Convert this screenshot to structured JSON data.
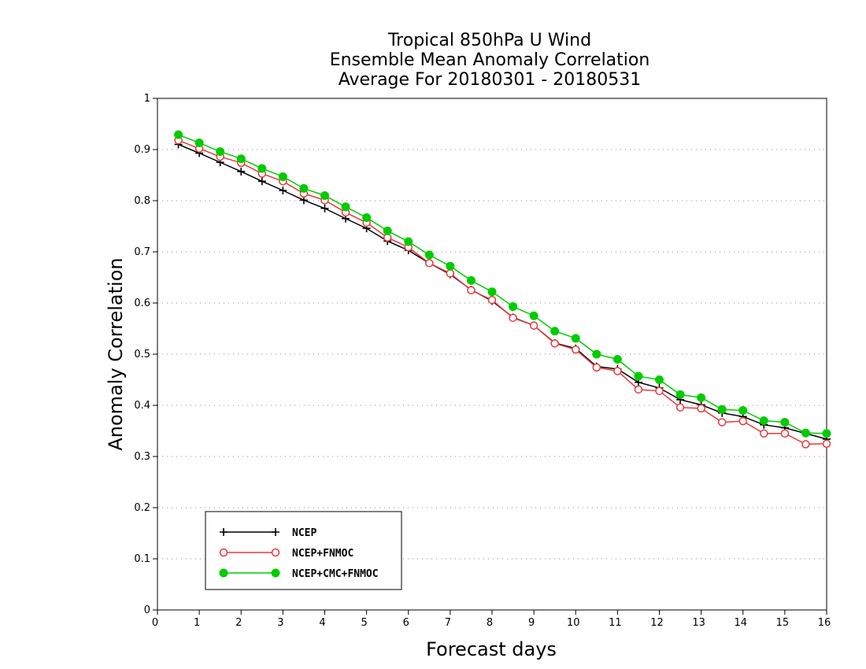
{
  "chart_data": {
    "type": "line",
    "title": [
      "Tropical 850hPa U Wind",
      "Ensemble Mean Anomaly Correlation",
      "Average For 20180301 - 20180531"
    ],
    "xlabel": "Forecast days",
    "ylabel": "Anomaly Correlation",
    "xlim": [
      0,
      16
    ],
    "ylim": [
      0,
      1
    ],
    "xticks": [
      0,
      1,
      2,
      3,
      4,
      5,
      6,
      7,
      8,
      9,
      10,
      11,
      12,
      13,
      14,
      15,
      16
    ],
    "xtick_labels": [
      "0",
      "1",
      "2",
      "3",
      "4",
      "5",
      "6",
      "7",
      "8",
      "9",
      "10",
      "11",
      "12",
      "13",
      "14",
      "15",
      "16"
    ],
    "yticks": [
      0,
      0.1,
      0.2,
      0.3,
      0.4,
      0.5,
      0.6,
      0.7,
      0.8,
      0.9,
      1
    ],
    "ytick_labels": [
      "0",
      "0.1",
      "0.2",
      "0.3",
      "0.4",
      "0.5",
      "0.6",
      "0.7",
      "0.8",
      "0.9",
      "1"
    ],
    "grid": "horizontal dotted",
    "legend_position": "bottom-left",
    "x": [
      0.5,
      1,
      1.5,
      2,
      2.5,
      3,
      3.5,
      4,
      4.5,
      5,
      5.5,
      6,
      6.5,
      7,
      7.5,
      8,
      8.5,
      9,
      9.5,
      10,
      10.5,
      11,
      11.5,
      12,
      12.5,
      13,
      13.5,
      14,
      14.5,
      15,
      15.5,
      16
    ],
    "series": [
      {
        "name": "NCEP",
        "color": "#000000",
        "marker": "plus",
        "values": [
          0.91,
          0.893,
          0.875,
          0.857,
          0.838,
          0.82,
          0.801,
          0.785,
          0.765,
          0.746,
          0.721,
          0.703,
          0.678,
          0.656,
          0.626,
          0.604,
          0.572,
          0.556,
          0.522,
          0.511,
          0.476,
          0.471,
          0.445,
          0.434,
          0.411,
          0.401,
          0.385,
          0.378,
          0.362,
          0.356,
          0.345,
          0.334
        ]
      },
      {
        "name": "NCEP+FNMOC",
        "color": "#e8383d",
        "marker": "open-circle",
        "values": [
          0.918,
          0.902,
          0.886,
          0.874,
          0.853,
          0.838,
          0.814,
          0.801,
          0.777,
          0.757,
          0.728,
          0.709,
          0.678,
          0.658,
          0.625,
          0.606,
          0.571,
          0.556,
          0.521,
          0.509,
          0.474,
          0.467,
          0.431,
          0.428,
          0.396,
          0.394,
          0.367,
          0.369,
          0.345,
          0.345,
          0.324,
          0.325
        ]
      },
      {
        "name": "NCEP+CMC+FNMOC",
        "color": "#00cc00",
        "marker": "filled-circle",
        "values": [
          0.929,
          0.913,
          0.896,
          0.882,
          0.863,
          0.847,
          0.824,
          0.81,
          0.788,
          0.767,
          0.741,
          0.72,
          0.694,
          0.672,
          0.644,
          0.622,
          0.593,
          0.575,
          0.545,
          0.531,
          0.5,
          0.49,
          0.457,
          0.45,
          0.421,
          0.415,
          0.392,
          0.39,
          0.37,
          0.367,
          0.346,
          0.345
        ]
      }
    ]
  }
}
